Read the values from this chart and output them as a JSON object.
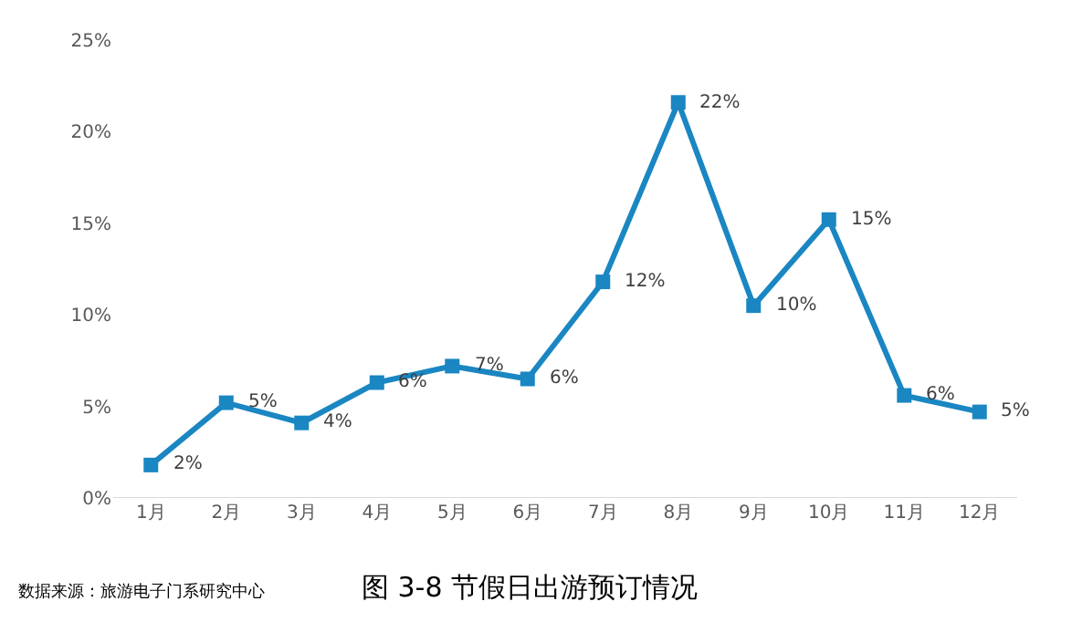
{
  "chart_data": {
    "type": "line",
    "title": "图 3-8 节假日出游预订情况",
    "annotations": [
      "数据来源：旅游电子门系研究中心"
    ],
    "categories": [
      "1月",
      "2月",
      "3月",
      "4月",
      "5月",
      "6月",
      "7月",
      "8月",
      "9月",
      "10月",
      "11月",
      "12月"
    ],
    "series": [
      {
        "color": "#1a86c2",
        "values": [
          1.8,
          5.2,
          4.1,
          6.3,
          7.2,
          6.5,
          11.8,
          21.6,
          10.5,
          15.2,
          5.6,
          4.7
        ],
        "value_labels": [
          "2%",
          "5%",
          "4%",
          "6%",
          "7%",
          "6%",
          "12%",
          "22%",
          "10%",
          "15%",
          "6%",
          "5%"
        ]
      }
    ],
    "ylim": [
      0,
      25
    ],
    "yticks": [
      {
        "value": 0,
        "label": "0%"
      },
      {
        "value": 5,
        "label": "5%"
      },
      {
        "value": 10,
        "label": "10%"
      },
      {
        "value": 15,
        "label": "15%"
      },
      {
        "value": 20,
        "label": "20%"
      },
      {
        "value": 25,
        "label": "25%"
      }
    ],
    "legend": false,
    "marker": "square",
    "line_style": "solid"
  }
}
